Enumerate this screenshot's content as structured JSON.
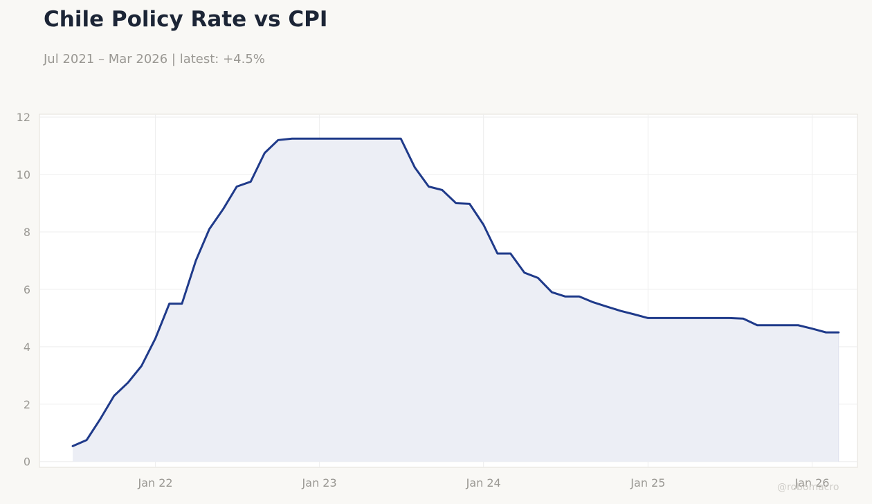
{
  "header": {
    "title": "Chile Policy Rate vs CPI",
    "subtitle": "Jul 2021 – Mar 2026 | latest: +4.5%"
  },
  "watermark": "@robomacro",
  "colors": {
    "background": "#f9f8f5",
    "plot_background": "#ffffff",
    "line": "#1f3a8a",
    "area_fill": "#eceef5",
    "grid": "#eeeeee",
    "tick_text": "#9a9893",
    "title_text": "#1c2536"
  },
  "chart_data": {
    "type": "area",
    "title": "Chile Policy Rate vs CPI",
    "subtitle": "Jul 2021 – Mar 2026 | latest: +4.5%",
    "xlabel": "",
    "ylabel": "",
    "ylim": [
      -0.2,
      12.1
    ],
    "xlim": [
      "2021-04-18",
      "2026-04-12"
    ],
    "yticks": [
      0,
      2,
      4,
      6,
      8,
      10,
      12
    ],
    "xticks": [
      {
        "date": "2022-01-01",
        "label": "Jan 22"
      },
      {
        "date": "2023-01-01",
        "label": "Jan 23"
      },
      {
        "date": "2024-01-01",
        "label": "Jan 24"
      },
      {
        "date": "2025-01-01",
        "label": "Jan 25"
      },
      {
        "date": "2026-01-01",
        "label": "Jan 26"
      }
    ],
    "grid": true,
    "legend": "none",
    "series": [
      {
        "dates": [
          "2021-07-01",
          "2021-08-01",
          "2021-09-01",
          "2021-10-01",
          "2021-11-01",
          "2021-12-01",
          "2022-01-01",
          "2022-02-01",
          "2022-03-01",
          "2022-04-01",
          "2022-05-01",
          "2022-06-01",
          "2022-07-01",
          "2022-08-01",
          "2022-09-01",
          "2022-10-01",
          "2022-11-01",
          "2022-12-01",
          "2023-01-01",
          "2023-02-01",
          "2023-03-01",
          "2023-04-01",
          "2023-05-01",
          "2023-06-01",
          "2023-07-01",
          "2023-08-01",
          "2023-09-01",
          "2023-10-01",
          "2023-11-01",
          "2023-12-01",
          "2024-01-01",
          "2024-02-01",
          "2024-03-01",
          "2024-04-01",
          "2024-05-01",
          "2024-06-01",
          "2024-07-01",
          "2024-08-01",
          "2024-09-01",
          "2024-10-01",
          "2024-11-01",
          "2024-12-01",
          "2025-01-01",
          "2025-02-01",
          "2025-03-01",
          "2025-04-01",
          "2025-05-01",
          "2025-06-01",
          "2025-07-01",
          "2025-08-01",
          "2025-09-01",
          "2025-10-01",
          "2025-11-01",
          "2025-12-01",
          "2026-01-01",
          "2026-02-01",
          "2026-03-01"
        ],
        "values": [
          0.54,
          0.75,
          1.5,
          2.29,
          2.75,
          3.33,
          4.29,
          5.5,
          5.5,
          7.0,
          8.1,
          8.8,
          9.58,
          9.75,
          10.75,
          11.2,
          11.25,
          11.25,
          11.25,
          11.25,
          11.25,
          11.25,
          11.25,
          11.25,
          11.25,
          10.25,
          9.58,
          9.46,
          9.0,
          8.98,
          8.25,
          7.25,
          7.25,
          6.58,
          6.4,
          5.9,
          5.75,
          5.75,
          5.55,
          5.4,
          5.25,
          5.13,
          5.0,
          5.0,
          5.0,
          5.0,
          5.0,
          5.0,
          5.0,
          4.98,
          4.75,
          4.75,
          4.75,
          4.75,
          4.63,
          4.5,
          4.5
        ]
      }
    ]
  }
}
